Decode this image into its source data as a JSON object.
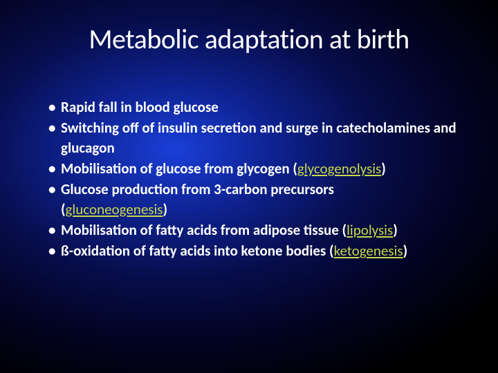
{
  "slide": {
    "title": "Metabolic adaptation at birth",
    "bullets": [
      {
        "text": "Rapid fall in blood glucose",
        "term": null,
        "after": null
      },
      {
        "text": "Switching off of insulin secretion and surge in catecholamines and glucagon",
        "term": null,
        "after": null
      },
      {
        "text": "Mobilisation of glucose from glycogen (",
        "term": "glycogenolysis",
        "after": ")"
      },
      {
        "text": "Glucose production from 3-carbon precursors",
        "sub_before": "(",
        "term": "gluconeogenesis",
        "after": ")"
      },
      {
        "text": "Mobilisation of fatty acids from adipose tissue (",
        "term": "lipolysis",
        "after": ")"
      },
      {
        "text": "ß-oxidation of fatty acids into ketone bodies (",
        "term": "ketogenesis",
        "after": ")"
      }
    ]
  },
  "style": {
    "title_fontsize": 40,
    "body_fontsize": 21,
    "title_color": "#ffffff",
    "body_color": "#ffffff",
    "term_color": "#c9d94a",
    "background_gradient_center": "#1a3fd8",
    "background_gradient_edge": "#000000"
  }
}
